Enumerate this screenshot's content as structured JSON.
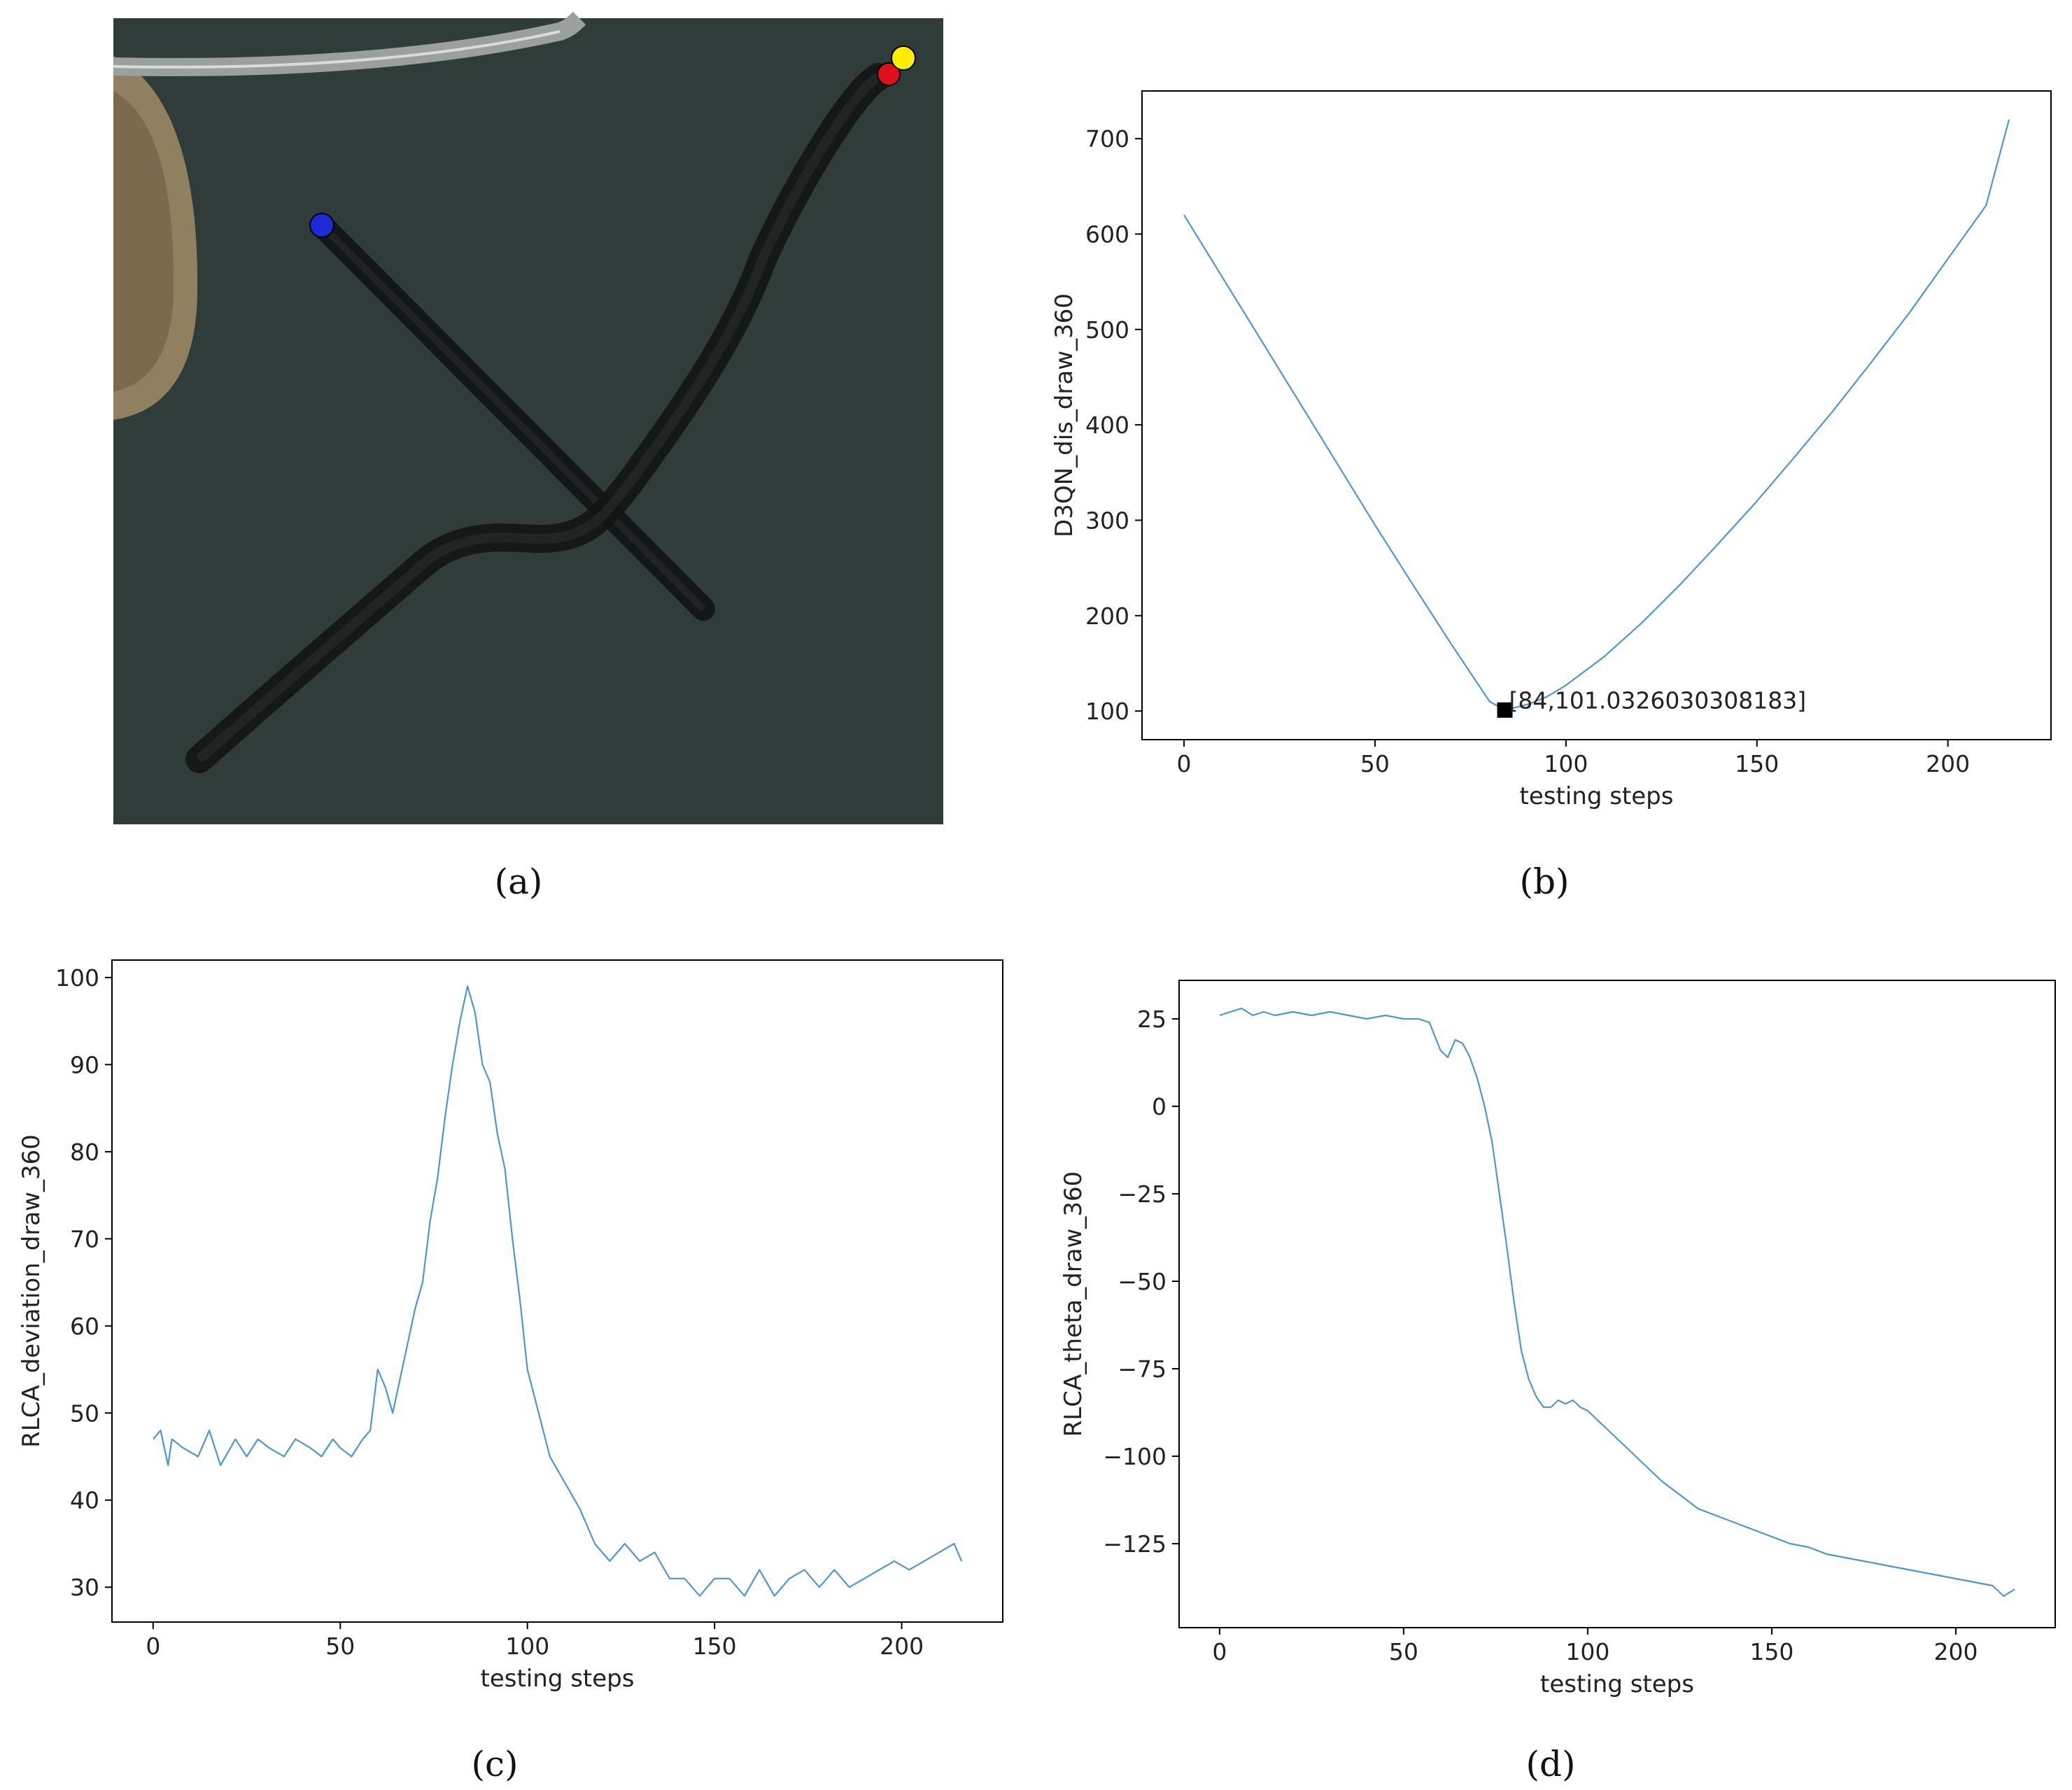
{
  "colors": {
    "line": "#4c97d0",
    "water": "#2f3c3a",
    "path": "#121414",
    "start_a": "#1c2bd6",
    "start_b": "#ffee00",
    "end_b": "#e0101a"
  },
  "panels": [
    {
      "id": "a",
      "label": "(a)"
    },
    {
      "id": "b",
      "label": "(b)"
    },
    {
      "id": "c",
      "label": "(c)"
    },
    {
      "id": "d",
      "label": "(d)"
    }
  ],
  "chart_data": [
    {
      "panel": "a",
      "type": "scatter",
      "description_visible": "trajectory map over aerial image",
      "markers": [
        "blue",
        "yellow",
        "red"
      ]
    },
    {
      "panel": "b",
      "type": "line",
      "xlabel": "testing steps",
      "ylabel": "D3QN_dis_draw_360",
      "xlim": [
        -11,
        227
      ],
      "ylim": [
        70,
        750
      ],
      "xticks": [
        0,
        50,
        100,
        150,
        200
      ],
      "yticks": [
        100,
        200,
        300,
        400,
        500,
        600,
        700
      ],
      "grid": false,
      "series": [
        {
          "x": [
            0,
            10,
            20,
            30,
            40,
            50,
            60,
            70,
            75,
            80,
            84,
            90,
            95,
            100,
            110,
            120,
            130,
            140,
            150,
            160,
            170,
            180,
            190,
            200,
            210,
            216
          ],
          "y": [
            620,
            555,
            490,
            425,
            360,
            295,
            232,
            170,
            140,
            110,
            101,
            107,
            115,
            127,
            157,
            193,
            233,
            276,
            320,
            367,
            415,
            466,
            518,
            574,
            630,
            720
          ]
        }
      ],
      "annotation": {
        "x": 84,
        "y": 101.0326030308183,
        "text": "[84,101.0326030308183]"
      }
    },
    {
      "panel": "c",
      "type": "line",
      "xlabel": "testing steps",
      "ylabel": "RLCA_deviation_draw_360",
      "xlim": [
        -11,
        227
      ],
      "ylim": [
        26,
        102
      ],
      "xticks": [
        0,
        50,
        100,
        150,
        200
      ],
      "yticks": [
        30,
        40,
        50,
        60,
        70,
        80,
        90,
        100
      ],
      "grid": false,
      "series": [
        {
          "x": [
            0,
            2,
            4,
            5,
            8,
            12,
            15,
            18,
            22,
            25,
            28,
            31,
            35,
            38,
            42,
            45,
            48,
            50,
            53,
            56,
            58,
            60,
            62,
            64,
            66,
            68,
            70,
            72,
            74,
            76,
            78,
            80,
            82,
            84,
            86,
            88,
            90,
            92,
            94,
            96,
            98,
            100,
            103,
            106,
            110,
            114,
            118,
            122,
            126,
            130,
            134,
            138,
            142,
            146,
            150,
            154,
            158,
            162,
            166,
            170,
            174,
            178,
            182,
            186,
            190,
            194,
            198,
            202,
            206,
            210,
            214,
            216
          ],
          "y": [
            47,
            48,
            44,
            47,
            46,
            45,
            48,
            44,
            47,
            45,
            47,
            46,
            45,
            47,
            46,
            45,
            47,
            46,
            45,
            47,
            48,
            55,
            53,
            50,
            54,
            58,
            62,
            65,
            72,
            77,
            84,
            90,
            95,
            99,
            96,
            90,
            88,
            82,
            78,
            70,
            63,
            55,
            50,
            45,
            42,
            39,
            35,
            33,
            35,
            33,
            34,
            31,
            31,
            29,
            31,
            31,
            29,
            32,
            29,
            31,
            32,
            30,
            32,
            30,
            31,
            32,
            33,
            32,
            33,
            34,
            35,
            33
          ]
        }
      ]
    },
    {
      "panel": "d",
      "type": "line",
      "xlabel": "testing steps",
      "ylabel": "RLCA_theta_draw_360",
      "xlim": [
        -11,
        227
      ],
      "ylim": [
        -149,
        36
      ],
      "xticks": [
        0,
        50,
        100,
        150,
        200
      ],
      "yticks": [
        25,
        0,
        -25,
        -50,
        -75,
        -100,
        -125
      ],
      "grid": false,
      "series": [
        {
          "x": [
            0,
            3,
            6,
            9,
            12,
            15,
            20,
            25,
            30,
            35,
            40,
            45,
            50,
            54,
            57,
            60,
            62,
            64,
            66,
            68,
            70,
            72,
            74,
            76,
            78,
            80,
            82,
            84,
            86,
            88,
            90,
            92,
            94,
            96,
            98,
            100,
            105,
            110,
            115,
            120,
            125,
            130,
            135,
            140,
            145,
            150,
            155,
            160,
            165,
            170,
            175,
            180,
            185,
            190,
            195,
            200,
            205,
            210,
            213,
            216
          ],
          "y": [
            26,
            27,
            28,
            26,
            27,
            26,
            27,
            26,
            27,
            26,
            25,
            26,
            25,
            25,
            24,
            16,
            14,
            19,
            18,
            14,
            8,
            0,
            -10,
            -25,
            -40,
            -56,
            -70,
            -78,
            -83,
            -86,
            -86,
            -84,
            -85,
            -84,
            -86,
            -87,
            -92,
            -97,
            -102,
            -107,
            -111,
            -115,
            -117,
            -119,
            -121,
            -123,
            -125,
            -126,
            -128,
            -129,
            -130,
            -131,
            -132,
            -133,
            -134,
            -135,
            -136,
            -137,
            -140,
            -138
          ]
        }
      ]
    }
  ]
}
